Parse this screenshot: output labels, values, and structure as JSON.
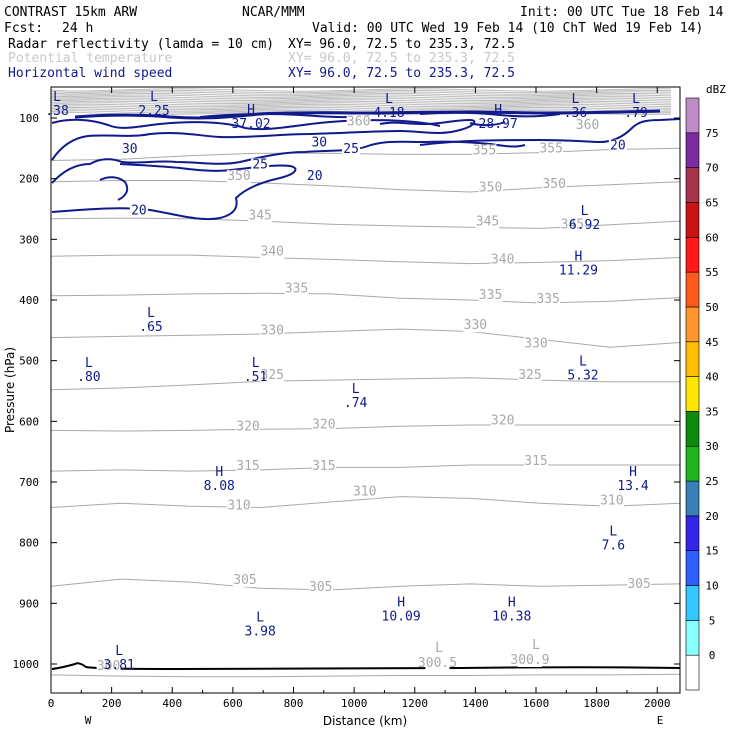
{
  "header": {
    "model": "CONTRAST 15km ARW",
    "center": "NCAR/MMM",
    "init": "Init: 00 UTC Tue 18 Feb 14",
    "fcst_label": "Fcst:",
    "fcst_value": "24 h",
    "valid": "Valid: 00 UTC Wed 19 Feb 14 (10 ChT Wed 19 Feb 14)",
    "fields": [
      {
        "name": "Radar reflectivity (lamda = 10 cm)",
        "xy": "XY=  96.0, 72.5 to 235.3, 72.5",
        "color": "#000000"
      },
      {
        "name": "Potential temperature",
        "xy": "XY=  96.0, 72.5 to 235.3, 72.5",
        "color": "#c8c8c8"
      },
      {
        "name": "Horizontal wind speed",
        "xy": "XY=  96.0, 72.5 to 235.3, 72.5",
        "color": "#101a8c"
      }
    ]
  },
  "colorbar": {
    "unit": "dBZ",
    "levels": [
      "0",
      "5",
      "10",
      "15",
      "20",
      "25",
      "30",
      "35",
      "40",
      "45",
      "50",
      "55",
      "60",
      "65",
      "70",
      "75"
    ],
    "colors": [
      "#ffffff",
      "#87fffd",
      "#33c6ff",
      "#2f5fff",
      "#3426e6",
      "#3b7fb8",
      "#1eb51e",
      "#0e8a0e",
      "#ffe600",
      "#ffbe00",
      "#ff9630",
      "#ff5a1e",
      "#ff1a1a",
      "#c81414",
      "#a8324b",
      "#7d2ba0",
      "#c08cc8"
    ]
  },
  "chart_data": {
    "type": "contour-cross-section",
    "xlabel": "Distance (km)",
    "ylabel": "Pressure (hPa)",
    "xlim": [
      0,
      2075
    ],
    "ylim": [
      1045,
      50
    ],
    "x_ticks": [
      "0",
      "200",
      "400",
      "600",
      "800",
      "1000",
      "1200",
      "1400",
      "1600",
      "1800",
      "2000"
    ],
    "y_ticks": [
      "100",
      "200",
      "300",
      "400",
      "500",
      "600",
      "700",
      "800",
      "900",
      "1000"
    ],
    "end_labels": {
      "left": "W",
      "right": "E"
    },
    "theta_labels": [
      {
        "text": "300",
        "x": 190,
        "p": 1010
      },
      {
        "text": "300.5",
        "x": 1275,
        "p": 1005
      },
      {
        "text": "300.9",
        "x": 1580,
        "p": 1000
      },
      {
        "text": "305",
        "x": 640,
        "p": 868
      },
      {
        "text": "305",
        "x": 890,
        "p": 880
      },
      {
        "text": "305",
        "x": 1940,
        "p": 875
      },
      {
        "text": "310",
        "x": 620,
        "p": 745
      },
      {
        "text": "310",
        "x": 1035,
        "p": 722
      },
      {
        "text": "310",
        "x": 1850,
        "p": 737
      },
      {
        "text": "315",
        "x": 650,
        "p": 680
      },
      {
        "text": "315",
        "x": 900,
        "p": 680
      },
      {
        "text": "315",
        "x": 1600,
        "p": 672
      },
      {
        "text": "320",
        "x": 650,
        "p": 615
      },
      {
        "text": "320",
        "x": 900,
        "p": 612
      },
      {
        "text": "320",
        "x": 1490,
        "p": 605
      },
      {
        "text": "325",
        "x": 730,
        "p": 530
      },
      {
        "text": "325",
        "x": 1580,
        "p": 530
      },
      {
        "text": "330",
        "x": 730,
        "p": 457
      },
      {
        "text": "330",
        "x": 1400,
        "p": 448
      },
      {
        "text": "330",
        "x": 1600,
        "p": 478
      },
      {
        "text": "335",
        "x": 810,
        "p": 388
      },
      {
        "text": "335",
        "x": 1450,
        "p": 398
      },
      {
        "text": "335",
        "x": 1640,
        "p": 405
      },
      {
        "text": "340",
        "x": 730,
        "p": 327
      },
      {
        "text": "340",
        "x": 1490,
        "p": 340
      },
      {
        "text": "345",
        "x": 690,
        "p": 267
      },
      {
        "text": "345",
        "x": 1440,
        "p": 277
      },
      {
        "text": "345",
        "x": 1720,
        "p": 282
      },
      {
        "text": "350",
        "x": 620,
        "p": 202
      },
      {
        "text": "350",
        "x": 1450,
        "p": 221
      },
      {
        "text": "350",
        "x": 1660,
        "p": 215
      },
      {
        "text": "355",
        "x": 1430,
        "p": 160
      },
      {
        "text": "355",
        "x": 1650,
        "p": 157
      },
      {
        "text": "360",
        "x": 1770,
        "p": 118
      },
      {
        "text": "360",
        "x": 1015,
        "p": 112
      }
    ],
    "wind_labels": [
      {
        "text": "30",
        "x": 260,
        "p": 158
      },
      {
        "text": "25",
        "x": 690,
        "p": 183
      },
      {
        "text": "20",
        "x": 290,
        "p": 259
      },
      {
        "text": "20",
        "x": 870,
        "p": 202
      },
      {
        "text": "30",
        "x": 885,
        "p": 147
      },
      {
        "text": "25",
        "x": 990,
        "p": 158
      },
      {
        "text": "20",
        "x": 1870,
        "p": 152
      }
    ],
    "extrema": [
      {
        "kind": "L",
        "value": ".38",
        "x": 20,
        "p": 82,
        "color": "#101a8c"
      },
      {
        "kind": "L",
        "value": "2.25",
        "x": 340,
        "p": 82,
        "color": "#101a8c"
      },
      {
        "kind": "H",
        "value": "37.02",
        "x": 660,
        "p": 103,
        "color": "#101a8c"
      },
      {
        "kind": "L",
        "value": "4.18",
        "x": 1115,
        "p": 85,
        "color": "#101a8c"
      },
      {
        "kind": "H",
        "value": "28.97",
        "x": 1475,
        "p": 103,
        "color": "#101a8c"
      },
      {
        "kind": "L",
        "value": ".36",
        "x": 1730,
        "p": 85,
        "color": "#101a8c"
      },
      {
        "kind": "L",
        "value": ".79",
        "x": 1930,
        "p": 85,
        "color": "#101a8c"
      },
      {
        "kind": "L",
        "value": "6.92",
        "x": 1760,
        "p": 270,
        "color": "#101a8c"
      },
      {
        "kind": "H",
        "value": "11.29",
        "x": 1740,
        "p": 345,
        "color": "#101a8c"
      },
      {
        "kind": "L",
        "value": ".65",
        "x": 330,
        "p": 438,
        "color": "#101a8c"
      },
      {
        "kind": "L",
        "value": ".80",
        "x": 125,
        "p": 520,
        "color": "#101a8c"
      },
      {
        "kind": "L",
        "value": ".51",
        "x": 675,
        "p": 520,
        "color": "#101a8c"
      },
      {
        "kind": "L",
        "value": ".74",
        "x": 1005,
        "p": 563,
        "color": "#101a8c"
      },
      {
        "kind": "L",
        "value": "5.32",
        "x": 1755,
        "p": 518,
        "color": "#101a8c"
      },
      {
        "kind": "H",
        "value": "8.08",
        "x": 555,
        "p": 700,
        "color": "#101a8c"
      },
      {
        "kind": "H",
        "value": "13.4",
        "x": 1920,
        "p": 700,
        "color": "#101a8c"
      },
      {
        "kind": "L",
        "value": "7.6",
        "x": 1855,
        "p": 798,
        "color": "#101a8c"
      },
      {
        "kind": "H",
        "value": "10.09",
        "x": 1155,
        "p": 915,
        "color": "#101a8c"
      },
      {
        "kind": "H",
        "value": "10.38",
        "x": 1520,
        "p": 915,
        "color": "#101a8c"
      },
      {
        "kind": "L",
        "value": "3.98",
        "x": 690,
        "p": 940,
        "color": "#101a8c"
      },
      {
        "kind": "L",
        "value": "3.81",
        "x": 225,
        "p": 995,
        "color": "#101a8c"
      },
      {
        "kind": "L",
        "value": "",
        "x": 1280,
        "p": 990,
        "color": "#a9a9a9"
      },
      {
        "kind": "L",
        "value": "",
        "x": 1600,
        "p": 985,
        "color": "#a9a9a9"
      }
    ],
    "theta_lines": [
      {
        "level": "300",
        "p": [
          1018,
          1020,
          1021,
          1021,
          1020,
          1019,
          1019,
          1018,
          1018,
          1017
        ]
      },
      {
        "level": "305",
        "p": [
          872,
          860,
          865,
          875,
          878,
          872,
          868,
          872,
          870,
          868
        ]
      },
      {
        "level": "310",
        "p": [
          742,
          735,
          740,
          742,
          733,
          724,
          727,
          735,
          740,
          735
        ]
      },
      {
        "level": "315",
        "p": [
          682,
          680,
          682,
          680,
          676,
          676,
          672,
          672,
          672,
          672
        ]
      },
      {
        "level": "320",
        "p": [
          615,
          616,
          615,
          613,
          612,
          608,
          606,
          606,
          606,
          606
        ]
      },
      {
        "level": "325",
        "p": [
          548,
          545,
          540,
          534,
          532,
          530,
          528,
          532,
          535,
          535
        ]
      },
      {
        "level": "330",
        "p": [
          462,
          460,
          458,
          456,
          452,
          448,
          452,
          465,
          478,
          470
        ]
      },
      {
        "level": "335",
        "p": [
          393,
          392,
          390,
          389,
          390,
          397,
          400,
          405,
          402,
          396
        ]
      },
      {
        "level": "340",
        "p": [
          328,
          326,
          326,
          330,
          333,
          337,
          340,
          338,
          335,
          330
        ]
      },
      {
        "level": "345",
        "p": [
          266,
          265,
          266,
          270,
          275,
          278,
          280,
          282,
          276,
          270
        ]
      },
      {
        "level": "350",
        "p": [
          205,
          203,
          203,
          207,
          212,
          218,
          222,
          215,
          210,
          205
        ]
      },
      {
        "level": "355",
        "p": [
          170,
          168,
          162,
          158,
          158,
          160,
          160,
          157,
          152,
          150
        ]
      }
    ]
  }
}
